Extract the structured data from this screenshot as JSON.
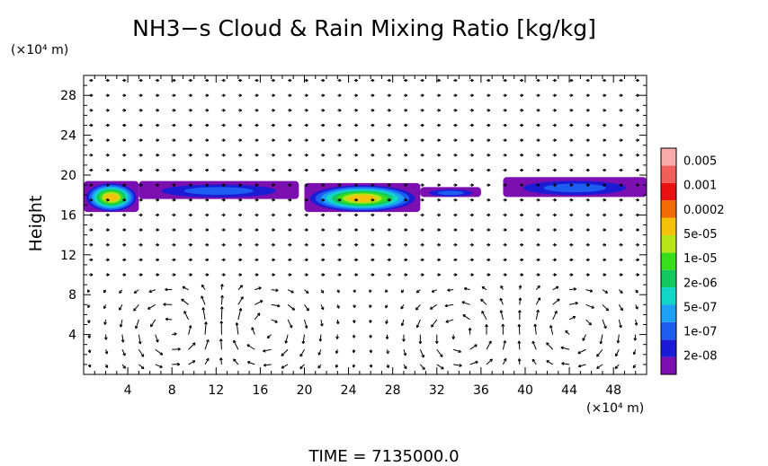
{
  "chart_data": {
    "type": "heatmap",
    "title": "NH3−s Cloud & Rain Mixing Ratio [kg/kg]",
    "ylabel": "Height",
    "y_unit": "(×10⁴ m)",
    "x_unit": "(×10⁴ m)",
    "footer": "TIME = 7135000.0",
    "xlim": [
      0,
      51
    ],
    "ylim": [
      0,
      30
    ],
    "x_ticks": [
      4,
      8,
      12,
      16,
      20,
      24,
      28,
      32,
      36,
      40,
      44,
      48
    ],
    "x_tick_labels": [
      "4",
      "8",
      "12",
      "16",
      "20",
      "24",
      "28",
      "32",
      "36",
      "40",
      "44",
      "48"
    ],
    "y_ticks": [
      4,
      8,
      12,
      16,
      20,
      24,
      28
    ],
    "y_tick_labels": [
      "4",
      "8",
      "12",
      "16",
      "20",
      "24",
      "28"
    ],
    "colorbar": {
      "colors": [
        "#7b0fb0",
        "#1b1bd6",
        "#1d5ef0",
        "#1ea0f5",
        "#12d6c8",
        "#14c860",
        "#38de1c",
        "#b8e41c",
        "#f4c20a",
        "#f06a06",
        "#e81212",
        "#f0605a",
        "#f6aaaa"
      ],
      "tick_labels": [
        "2e-08",
        "1e-07",
        "5e-07",
        "2e-06",
        "1e-05",
        "5e-05",
        "0.0002",
        "0.001",
        "0.005"
      ]
    },
    "cloud_layer": [
      {
        "x_start": 0.0,
        "x_end": 5.0,
        "y_bottom": 16.3,
        "y_top": 19.4,
        "max_color": "#f4c20a"
      },
      {
        "x_start": 5.0,
        "x_end": 19.5,
        "y_bottom": 17.6,
        "y_top": 19.4,
        "max_color": "#1d5ef0"
      },
      {
        "x_start": 20.0,
        "x_end": 30.5,
        "y_bottom": 16.3,
        "y_top": 19.2,
        "max_color": "#f4c20a"
      },
      {
        "x_start": 30.5,
        "x_end": 36.0,
        "y_bottom": 17.8,
        "y_top": 18.8,
        "max_color": "#1d5ef0"
      },
      {
        "x_start": 38.0,
        "x_end": 51.0,
        "y_bottom": 17.8,
        "y_top": 19.8,
        "max_color": "#1d5ef0"
      }
    ],
    "wind_vectors": {
      "circulation_cells": [
        {
          "center_x": 8.0,
          "center_y": 4.5,
          "sense": 1
        },
        {
          "center_x": 16.5,
          "center_y": 4.5,
          "sense": -1
        },
        {
          "center_x": 34.0,
          "center_y": 4.0,
          "sense": 1
        },
        {
          "center_x": 44.5,
          "center_y": 4.5,
          "sense": -1
        }
      ]
    }
  }
}
